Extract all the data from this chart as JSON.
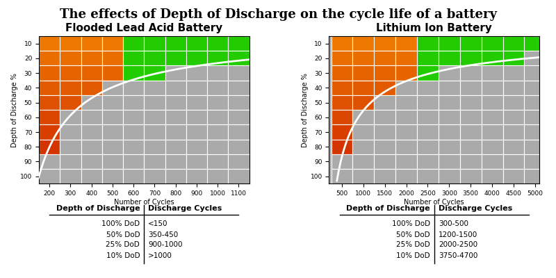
{
  "title": "The effects of Depth of Discharge on the cycle life of a battery",
  "title_fontsize": 13,
  "lead_acid": {
    "title": "Flooded Lead Acid Battery",
    "xlabel": "Number of Cycles",
    "ylabel": "Depth of Discharge %",
    "x_ticks": [
      200,
      300,
      400,
      500,
      600,
      700,
      800,
      900,
      1000,
      1100
    ],
    "x_min": 150,
    "x_max": 1150,
    "y_ticks": [
      10,
      20,
      30,
      40,
      50,
      60,
      70,
      80,
      90,
      100
    ],
    "table_dod": [
      "100% DoD",
      "50% DoD",
      "25% DoD",
      "10% DoD"
    ],
    "table_cycles": [
      "<150",
      "350-450",
      "900-1000",
      ">1000"
    ],
    "curve_a": 150,
    "curve_b": 1.3,
    "green_boundary": 600
  },
  "lithium": {
    "title": "Lithium Ion Battery",
    "xlabel": "Number of Cycles",
    "ylabel": "Depth of Discharge %",
    "x_ticks": [
      500,
      1000,
      1500,
      2000,
      2500,
      3000,
      3500,
      4000,
      4500,
      5000
    ],
    "x_min": 200,
    "x_max": 5100,
    "y_ticks": [
      10,
      20,
      30,
      40,
      50,
      60,
      70,
      80,
      90,
      100
    ],
    "table_dod": [
      "100% DoD",
      "50% DoD",
      "25% DoD",
      "10% DoD"
    ],
    "table_cycles": [
      "300-500",
      "1200-1500",
      "2000-2500",
      "3750-4700"
    ],
    "curve_a": 400,
    "curve_b": 1.55,
    "green_boundary": 2500
  },
  "color_gray": "#aaaaaa",
  "color_green": "#22cc00",
  "color_white": "#ffffff"
}
